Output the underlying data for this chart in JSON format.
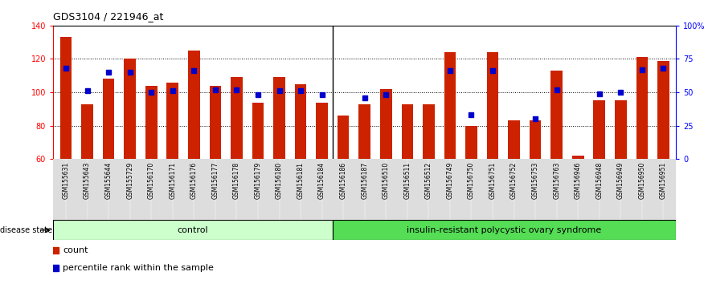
{
  "title": "GDS3104 / 221946_at",
  "samples": [
    "GSM155631",
    "GSM155643",
    "GSM155644",
    "GSM155729",
    "GSM156170",
    "GSM156171",
    "GSM156176",
    "GSM156177",
    "GSM156178",
    "GSM156179",
    "GSM156180",
    "GSM156181",
    "GSM156184",
    "GSM156186",
    "GSM156187",
    "GSM156510",
    "GSM156511",
    "GSM156512",
    "GSM156749",
    "GSM156750",
    "GSM156751",
    "GSM156752",
    "GSM156753",
    "GSM156763",
    "GSM156946",
    "GSM156948",
    "GSM156949",
    "GSM156950",
    "GSM156951"
  ],
  "counts": [
    133,
    93,
    108,
    120,
    104,
    106,
    125,
    104,
    109,
    94,
    109,
    105,
    94,
    86,
    93,
    102,
    93,
    93,
    124,
    80,
    124,
    83,
    83,
    113,
    62,
    95,
    95,
    121,
    119
  ],
  "percentiles": [
    68,
    51,
    65,
    65,
    50,
    51,
    66,
    52,
    52,
    48,
    51,
    51,
    48,
    null,
    46,
    48,
    null,
    null,
    66,
    33,
    66,
    null,
    30,
    52,
    null,
    49,
    50,
    67,
    68
  ],
  "control_count": 13,
  "disease_count": 16,
  "ylim_left": [
    60,
    140
  ],
  "ylim_right": [
    0,
    100
  ],
  "yticks_left": [
    60,
    80,
    100,
    120,
    140
  ],
  "yticks_right": [
    0,
    25,
    50,
    75,
    100
  ],
  "bar_color": "#CC2200",
  "percentile_color": "#0000CC",
  "control_label": "control",
  "disease_label": "insulin-resistant polycystic ovary syndrome",
  "control_bg": "#CCFFCC",
  "disease_bg": "#55DD55",
  "legend_count": "count",
  "legend_percentile": "percentile rank within the sample",
  "bar_width": 0.55,
  "bar_bottom": 60
}
